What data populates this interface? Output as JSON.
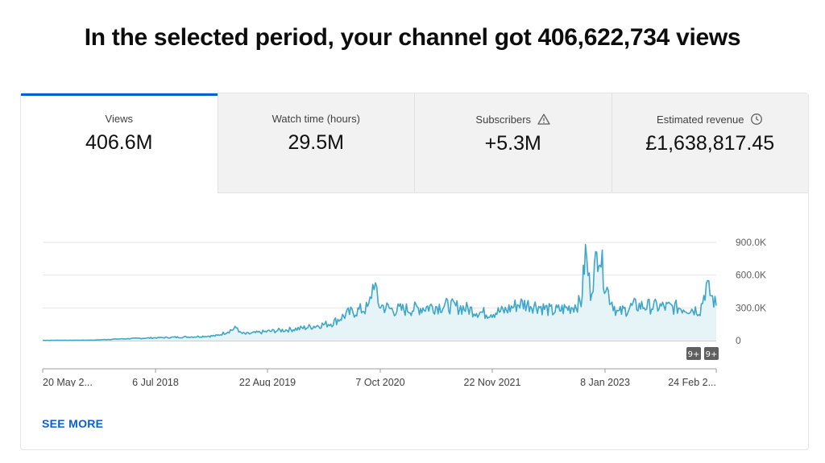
{
  "headline": "In the selected period, your channel got 406,622,734 views",
  "tabs": [
    {
      "label": "Views",
      "value": "406.6M",
      "active": true
    },
    {
      "label": "Watch time (hours)",
      "value": "29.5M"
    },
    {
      "label": "Subscribers",
      "value": "+5.3M",
      "icon": "warning-icon"
    },
    {
      "label": "Estimated revenue",
      "value": "£1,638,817.45",
      "icon": "clock-icon"
    }
  ],
  "see_more": "SEE MORE",
  "markers": [
    "9+",
    "9+"
  ],
  "colors": {
    "accent": "#065fd4",
    "line": "#3ea6c9",
    "area": "#e6f4f8"
  },
  "chart_data": {
    "type": "area",
    "y_ticks": [
      "900.0K",
      "600.0K",
      "300.0K",
      "0"
    ],
    "ylim": [
      0,
      900000
    ],
    "x_ticks": [
      "20 May 2...",
      "6 Jul 2018",
      "22 Aug 2019",
      "7 Oct 2020",
      "22 Nov 2021",
      "8 Jan 2023",
      "24 Feb 2..."
    ],
    "grid": true,
    "x": [
      "2017-05-20",
      "2017-09-01",
      "2017-12-01",
      "2018-03-01",
      "2018-07-06",
      "2018-12-01",
      "2019-03-01",
      "2019-05-15",
      "2019-05-25",
      "2019-06-15",
      "2019-08-22",
      "2020-01-01",
      "2020-05-01",
      "2020-07-01",
      "2020-09-15",
      "2020-10-05",
      "2020-10-20",
      "2020-12-15",
      "2021-03-01",
      "2021-05-01",
      "2021-07-01",
      "2021-09-01",
      "2021-11-22",
      "2022-02-01",
      "2022-04-01",
      "2022-06-01",
      "2022-08-01",
      "2022-10-01",
      "2022-11-15",
      "2022-12-01",
      "2022-12-20",
      "2023-01-08",
      "2023-01-20",
      "2023-02-10",
      "2023-03-01",
      "2023-04-01",
      "2023-06-01",
      "2023-09-01",
      "2023-12-01",
      "2024-02-01",
      "2024-02-24",
      "2024-04-01"
    ],
    "values": [
      2000,
      3000,
      5000,
      15000,
      25000,
      35000,
      45000,
      120000,
      70000,
      60000,
      80000,
      110000,
      160000,
      250000,
      300000,
      560000,
      330000,
      280000,
      290000,
      310000,
      320000,
      300000,
      250000,
      270000,
      340000,
      320000,
      270000,
      300000,
      350000,
      800000,
      450000,
      700000,
      870000,
      550000,
      400000,
      250000,
      320000,
      310000,
      300000,
      280000,
      500000,
      320000
    ]
  }
}
